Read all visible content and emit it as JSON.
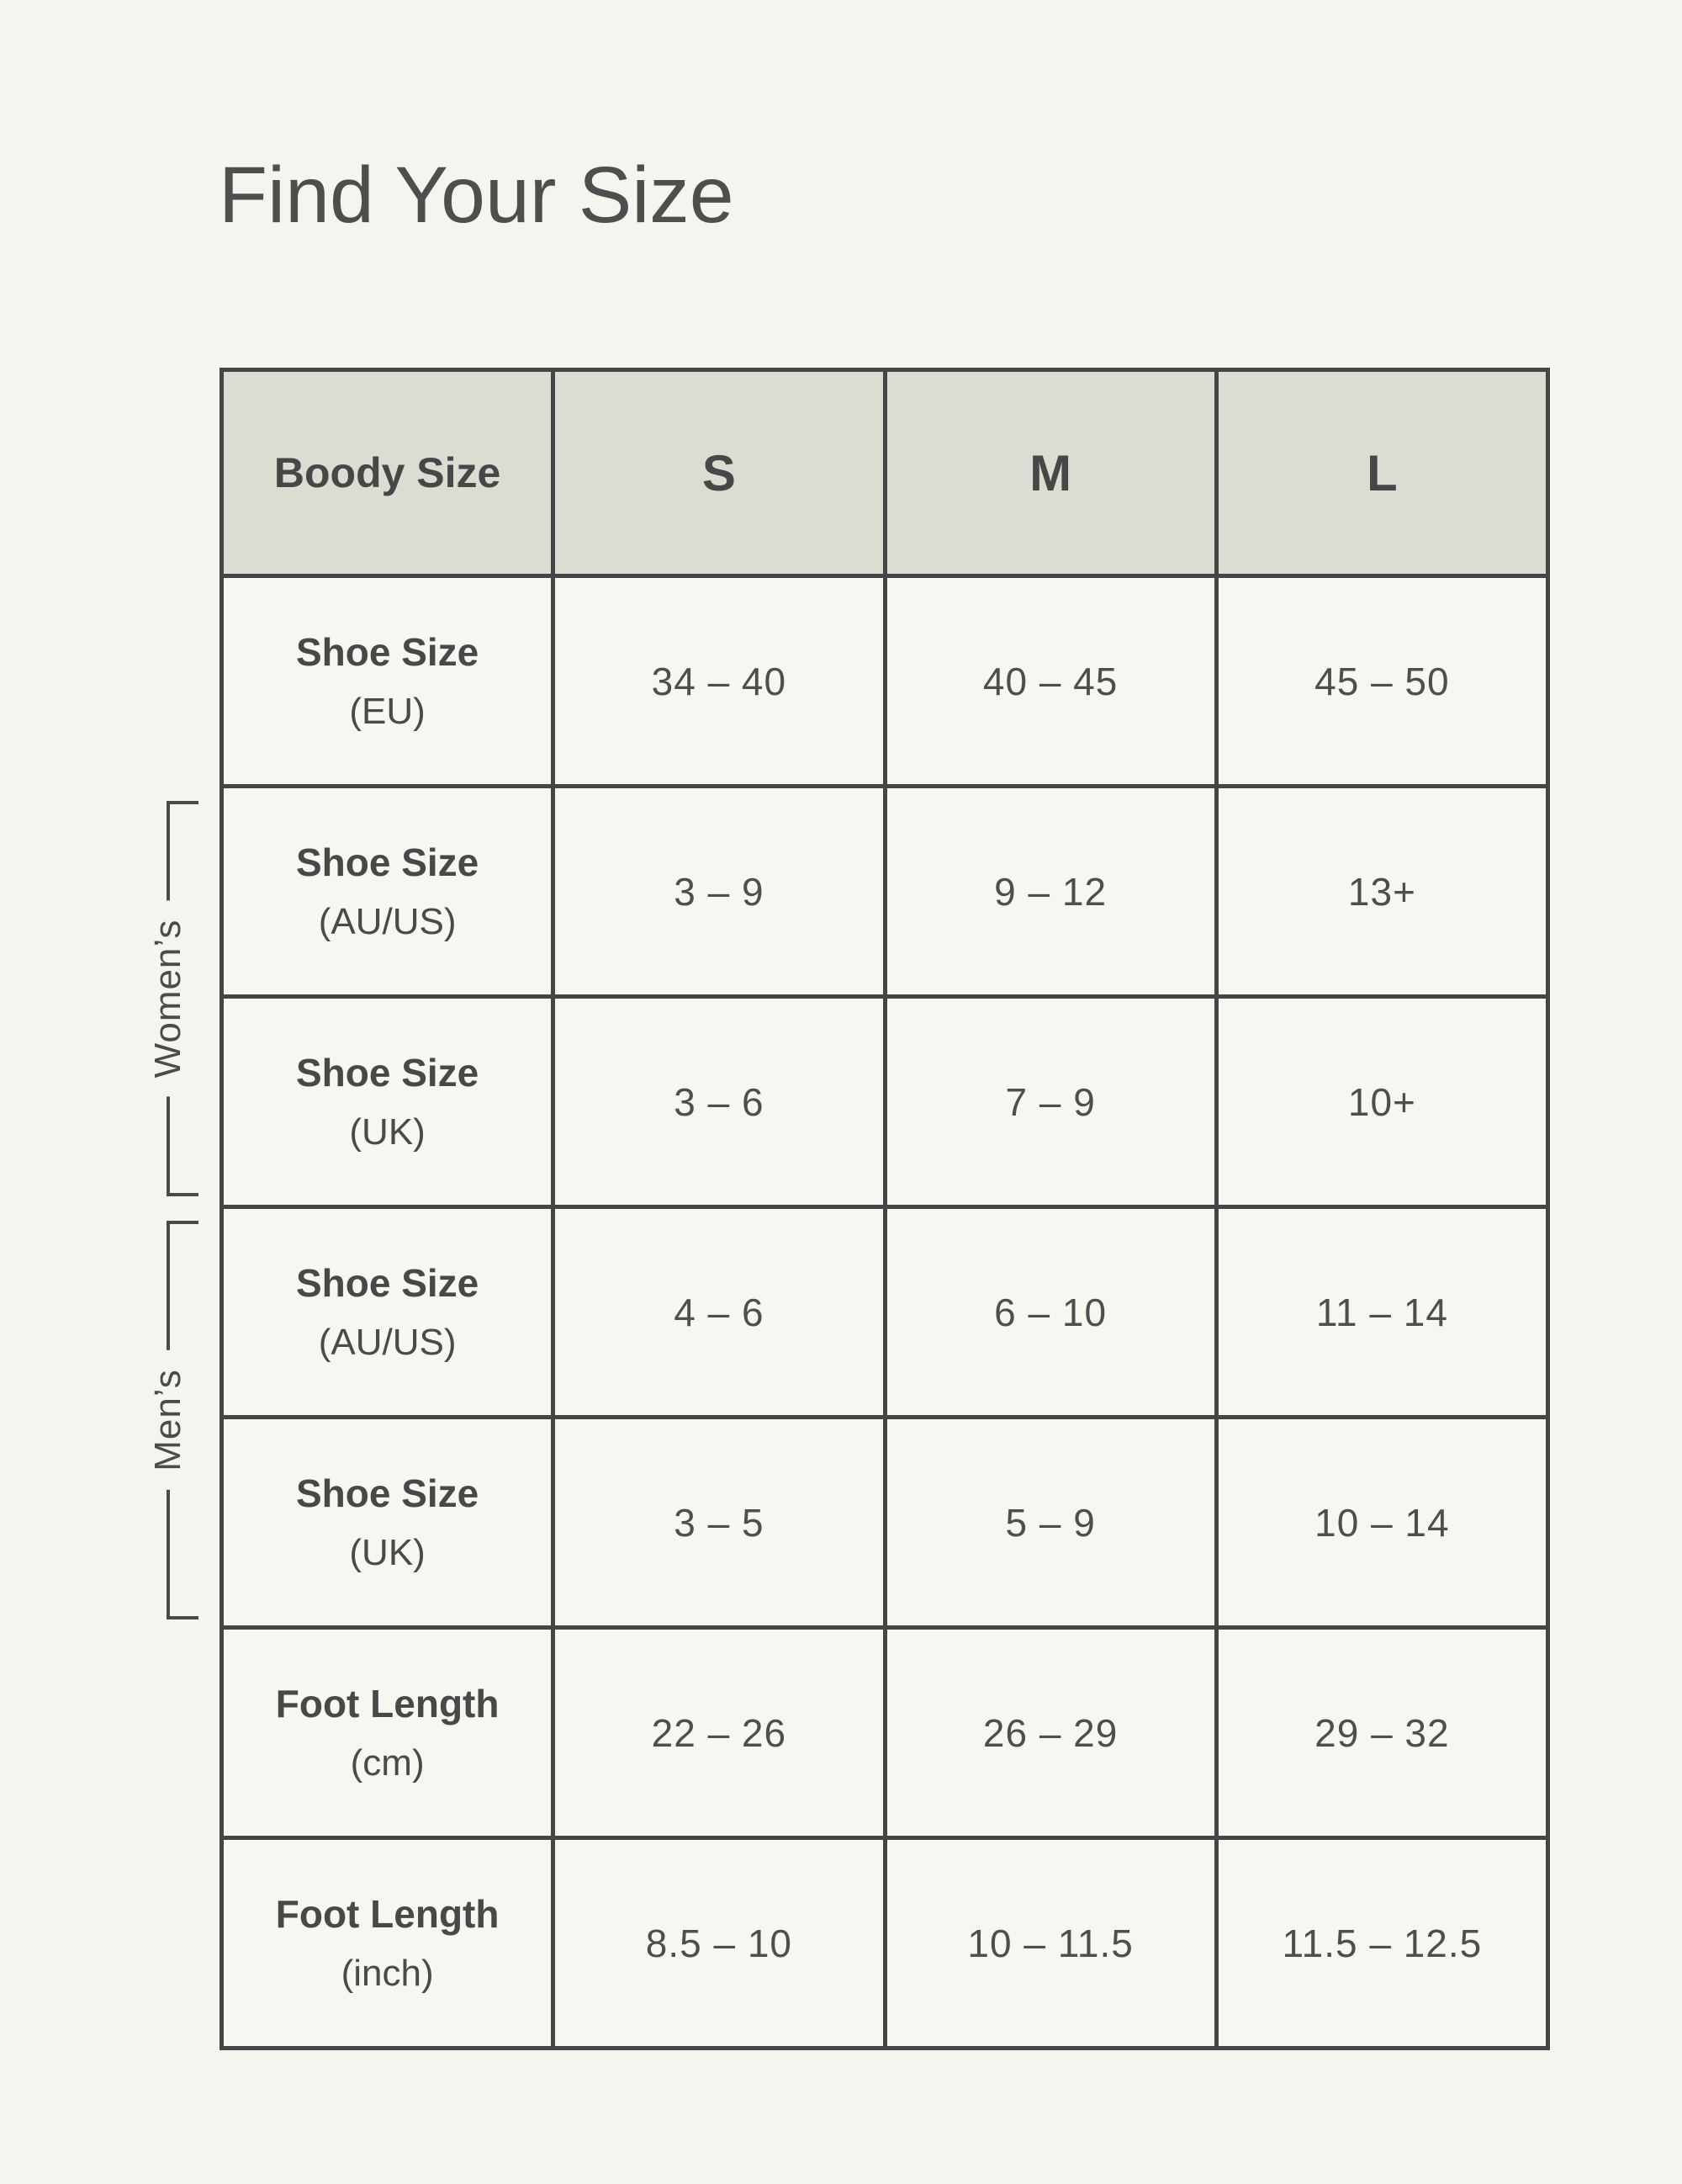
{
  "title": "Find Your Size",
  "side_labels": {
    "womens": "Women’s",
    "mens": "Men’s"
  },
  "table": {
    "header": {
      "label": "Boody Size",
      "sizes": [
        "S",
        "M",
        "L"
      ]
    },
    "rows": [
      {
        "label": "Shoe Size",
        "sub": "(EU)",
        "values": [
          "34 – 40",
          "40 – 45",
          "45 – 50"
        ]
      },
      {
        "label": "Shoe Size",
        "sub": "(AU/US)",
        "values": [
          "3 – 9",
          "9 – 12",
          "13+"
        ]
      },
      {
        "label": "Shoe Size",
        "sub": "(UK)",
        "values": [
          "3 – 6",
          "7 – 9",
          "10+"
        ]
      },
      {
        "label": "Shoe Size",
        "sub": "(AU/US)",
        "values": [
          "4 – 6",
          "6 – 10",
          "11 – 14"
        ]
      },
      {
        "label": "Shoe Size",
        "sub": "(UK)",
        "values": [
          "3 – 5",
          "5 – 9",
          "10 – 14"
        ]
      },
      {
        "label": "Foot Length",
        "sub": "(cm)",
        "values": [
          "22 – 26",
          "26 – 29",
          "29 – 32"
        ]
      },
      {
        "label": "Foot Length",
        "sub": "(inch)",
        "values": [
          "8.5 – 10",
          "10 – 11.5",
          "11.5 – 12.5"
        ]
      }
    ]
  },
  "colors": {
    "page_background": "#f5f4ee",
    "header_fill": "#dcdcd3",
    "cell_fill": "#f7f6f0",
    "border": "#454545",
    "text": "#4a4a4a"
  },
  "chart_data": {
    "type": "table",
    "title": "Find Your Size",
    "columns": [
      "Boody Size",
      "S",
      "M",
      "L"
    ],
    "rows": [
      {
        "group": "",
        "label": "Shoe Size (EU)",
        "S": "34 – 40",
        "M": "40 – 45",
        "L": "45 – 50"
      },
      {
        "group": "Women’s",
        "label": "Shoe Size (AU/US)",
        "S": "3 – 9",
        "M": "9 – 12",
        "L": "13+"
      },
      {
        "group": "Women’s",
        "label": "Shoe Size (UK)",
        "S": "3 – 6",
        "M": "7 – 9",
        "L": "10+"
      },
      {
        "group": "Men’s",
        "label": "Shoe Size (AU/US)",
        "S": "4 – 6",
        "M": "6 – 10",
        "L": "11 – 14"
      },
      {
        "group": "Men’s",
        "label": "Shoe Size (UK)",
        "S": "3 – 5",
        "M": "5 – 9",
        "L": "10 – 14"
      },
      {
        "group": "",
        "label": "Foot Length (cm)",
        "S": "22 – 26",
        "M": "26 – 29",
        "L": "29 – 32"
      },
      {
        "group": "",
        "label": "Foot Length (inch)",
        "S": "8.5 – 10",
        "M": "10 – 11.5",
        "L": "11.5 – 12.5"
      }
    ]
  }
}
